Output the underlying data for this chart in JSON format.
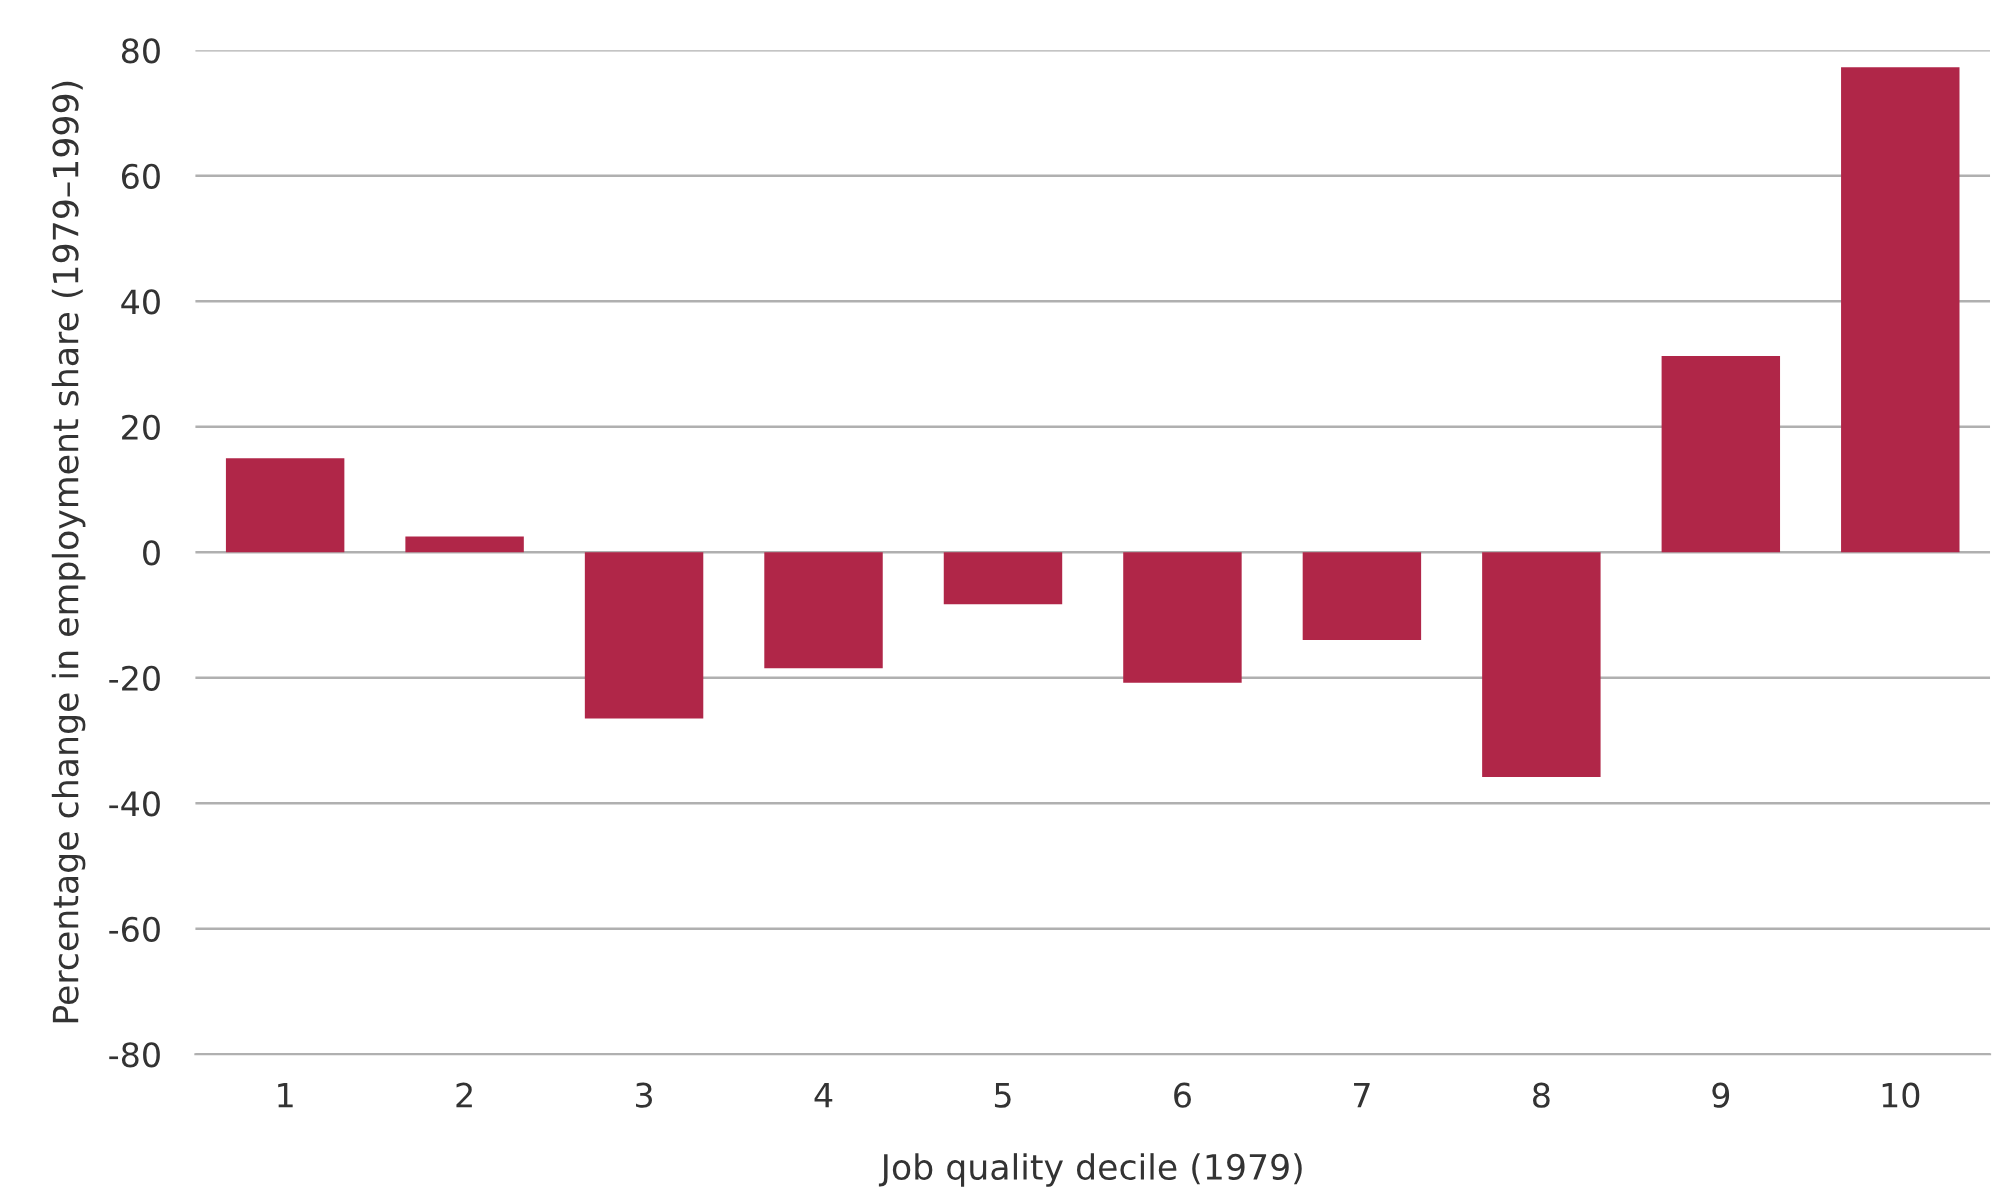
{
  "chart_data": {
    "type": "bar",
    "xlabel": "Job quality decile (1979)",
    "ylabel": "Percentage change in employment share (1979–1999)",
    "categories": [
      "1",
      "2",
      "3",
      "4",
      "5",
      "6",
      "7",
      "8",
      "9",
      "10"
    ],
    "series": [
      {
        "color": "#b02648",
        "values": [
          15,
          2.5,
          -26.5,
          -18.5,
          -8.3,
          -20.8,
          -14,
          -35.8,
          31.3,
          77.3
        ]
      }
    ],
    "ylim": [
      -80,
      80
    ],
    "yticks": [
      -80,
      -60,
      -40,
      -20,
      0,
      20,
      40,
      60,
      80
    ],
    "grid": "y",
    "legend": false
  }
}
